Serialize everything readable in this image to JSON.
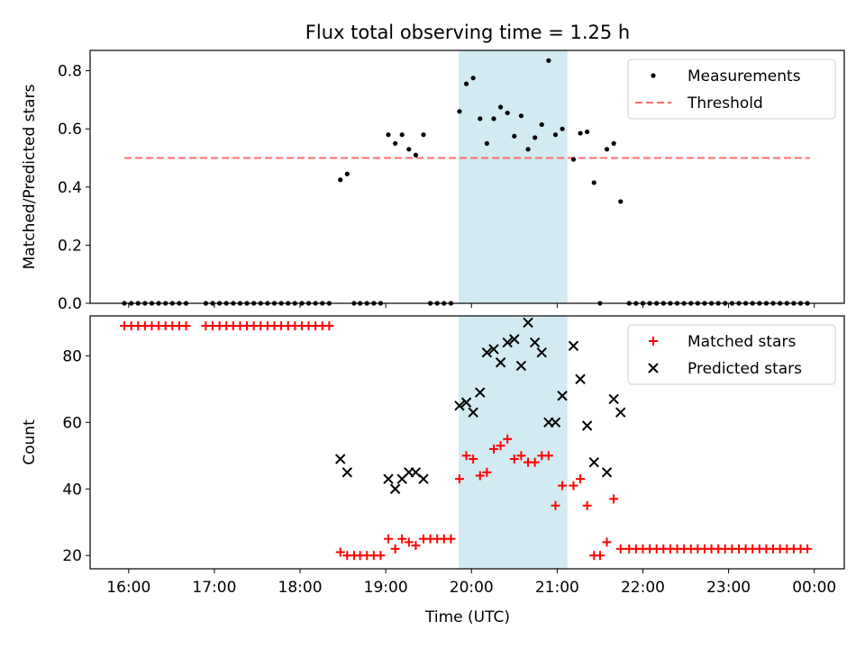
{
  "chart_data": [
    {
      "type": "scatter",
      "title": "Flux total observing time = 1.25 h",
      "xlabel": "",
      "ylabel": "Matched/Predicted stars",
      "ylim": [
        0,
        0.87
      ],
      "yticks": [
        0.0,
        0.2,
        0.4,
        0.6,
        0.8
      ],
      "ytick_labels": [
        "0.0",
        "0.2",
        "0.4",
        "0.6",
        "0.8"
      ],
      "xlim": [
        15.55,
        24.35
      ],
      "xticks": [
        16,
        17,
        18,
        19,
        20,
        21,
        22,
        23,
        24
      ],
      "xtick_labels": [],
      "highlight_span": {
        "from": 19.85,
        "to": 21.12,
        "color": "#add8e6"
      },
      "legend": {
        "position": "upper right",
        "entries": [
          "Measurements",
          "Threshold"
        ]
      },
      "threshold": {
        "name": "Threshold",
        "y": 0.5,
        "x_range": [
          15.95,
          23.95
        ],
        "color": "#ff6b6b"
      },
      "series": [
        {
          "name": "Measurements",
          "marker": "dot",
          "color": "#000000",
          "points": [
            [
              15.95,
              0
            ],
            [
              16.03,
              0
            ],
            [
              16.11,
              0
            ],
            [
              16.19,
              0
            ],
            [
              16.27,
              0
            ],
            [
              16.35,
              0
            ],
            [
              16.43,
              0
            ],
            [
              16.51,
              0
            ],
            [
              16.59,
              0
            ],
            [
              16.67,
              0
            ],
            [
              16.9,
              0
            ],
            [
              16.98,
              0
            ],
            [
              17.06,
              0
            ],
            [
              17.14,
              0
            ],
            [
              17.22,
              0
            ],
            [
              17.3,
              0
            ],
            [
              17.38,
              0
            ],
            [
              17.46,
              0
            ],
            [
              17.54,
              0
            ],
            [
              17.62,
              0
            ],
            [
              17.7,
              0
            ],
            [
              17.78,
              0
            ],
            [
              17.86,
              0
            ],
            [
              17.94,
              0
            ],
            [
              18.02,
              0
            ],
            [
              18.1,
              0
            ],
            [
              18.18,
              0
            ],
            [
              18.26,
              0
            ],
            [
              18.34,
              0
            ],
            [
              18.47,
              0.425
            ],
            [
              18.55,
              0.445
            ],
            [
              18.63,
              0
            ],
            [
              18.7,
              0
            ],
            [
              18.78,
              0
            ],
            [
              18.86,
              0
            ],
            [
              18.94,
              0
            ],
            [
              19.03,
              0.58
            ],
            [
              19.11,
              0.55
            ],
            [
              19.19,
              0.58
            ],
            [
              19.27,
              0.53
            ],
            [
              19.35,
              0.51
            ],
            [
              19.44,
              0.58
            ],
            [
              19.52,
              0
            ],
            [
              19.6,
              0
            ],
            [
              19.68,
              0
            ],
            [
              19.76,
              0
            ],
            [
              19.86,
              0.66
            ],
            [
              19.94,
              0.755
            ],
            [
              20.02,
              0.775
            ],
            [
              20.1,
              0.635
            ],
            [
              20.18,
              0.55
            ],
            [
              20.26,
              0.635
            ],
            [
              20.34,
              0.675
            ],
            [
              20.42,
              0.655
            ],
            [
              20.5,
              0.575
            ],
            [
              20.58,
              0.645
            ],
            [
              20.66,
              0.53
            ],
            [
              20.74,
              0.57
            ],
            [
              20.82,
              0.615
            ],
            [
              20.9,
              0.835
            ],
            [
              20.98,
              0.58
            ],
            [
              21.06,
              0.6
            ],
            [
              21.19,
              0.495
            ],
            [
              21.27,
              0.585
            ],
            [
              21.35,
              0.59
            ],
            [
              21.43,
              0.415
            ],
            [
              21.5,
              0
            ],
            [
              21.58,
              0.53
            ],
            [
              21.66,
              0.55
            ],
            [
              21.74,
              0.35
            ],
            [
              21.84,
              0
            ],
            [
              21.92,
              0
            ],
            [
              22.0,
              0
            ],
            [
              22.08,
              0
            ],
            [
              22.16,
              0
            ],
            [
              22.24,
              0
            ],
            [
              22.32,
              0
            ],
            [
              22.4,
              0
            ],
            [
              22.48,
              0
            ],
            [
              22.56,
              0
            ],
            [
              22.64,
              0
            ],
            [
              22.72,
              0
            ],
            [
              22.8,
              0
            ],
            [
              22.88,
              0
            ],
            [
              22.96,
              0
            ],
            [
              23.04,
              0
            ],
            [
              23.12,
              0
            ],
            [
              23.2,
              0
            ],
            [
              23.28,
              0
            ],
            [
              23.36,
              0
            ],
            [
              23.44,
              0
            ],
            [
              23.52,
              0
            ],
            [
              23.6,
              0
            ],
            [
              23.68,
              0
            ],
            [
              23.76,
              0
            ],
            [
              23.84,
              0
            ],
            [
              23.92,
              0
            ]
          ]
        }
      ]
    },
    {
      "type": "scatter",
      "title": "",
      "xlabel": "Time (UTC)",
      "ylabel": "Count",
      "ylim": [
        16,
        92
      ],
      "yticks": [
        20,
        40,
        60,
        80
      ],
      "ytick_labels": [
        "20",
        "40",
        "60",
        "80"
      ],
      "xlim": [
        15.55,
        24.35
      ],
      "xticks": [
        16,
        17,
        18,
        19,
        20,
        21,
        22,
        23,
        24
      ],
      "xtick_labels": [
        "16:00",
        "17:00",
        "18:00",
        "19:00",
        "20:00",
        "21:00",
        "22:00",
        "23:00",
        "00:00"
      ],
      "highlight_span": {
        "from": 19.85,
        "to": 21.12,
        "color": "#add8e6"
      },
      "legend": {
        "position": "upper right",
        "entries": [
          "Matched stars",
          "Predicted stars"
        ]
      },
      "series": [
        {
          "name": "Matched stars",
          "marker": "plus",
          "color": "#ff0000",
          "points": [
            [
              15.95,
              89
            ],
            [
              16.03,
              89
            ],
            [
              16.11,
              89
            ],
            [
              16.19,
              89
            ],
            [
              16.27,
              89
            ],
            [
              16.35,
              89
            ],
            [
              16.43,
              89
            ],
            [
              16.51,
              89
            ],
            [
              16.59,
              89
            ],
            [
              16.67,
              89
            ],
            [
              16.9,
              89
            ],
            [
              16.98,
              89
            ],
            [
              17.06,
              89
            ],
            [
              17.14,
              89
            ],
            [
              17.22,
              89
            ],
            [
              17.3,
              89
            ],
            [
              17.38,
              89
            ],
            [
              17.46,
              89
            ],
            [
              17.54,
              89
            ],
            [
              17.62,
              89
            ],
            [
              17.7,
              89
            ],
            [
              17.78,
              89
            ],
            [
              17.86,
              89
            ],
            [
              17.94,
              89
            ],
            [
              18.02,
              89
            ],
            [
              18.1,
              89
            ],
            [
              18.18,
              89
            ],
            [
              18.26,
              89
            ],
            [
              18.34,
              89
            ],
            [
              18.47,
              21
            ],
            [
              18.55,
              20
            ],
            [
              18.63,
              20
            ],
            [
              18.7,
              20
            ],
            [
              18.78,
              20
            ],
            [
              18.86,
              20
            ],
            [
              18.94,
              20
            ],
            [
              19.03,
              25
            ],
            [
              19.11,
              22
            ],
            [
              19.19,
              25
            ],
            [
              19.27,
              24
            ],
            [
              19.35,
              23
            ],
            [
              19.44,
              25
            ],
            [
              19.52,
              25
            ],
            [
              19.6,
              25
            ],
            [
              19.68,
              25
            ],
            [
              19.76,
              25
            ],
            [
              19.86,
              43
            ],
            [
              19.94,
              50
            ],
            [
              20.02,
              49
            ],
            [
              20.1,
              44
            ],
            [
              20.18,
              45
            ],
            [
              20.26,
              52
            ],
            [
              20.34,
              53
            ],
            [
              20.42,
              55
            ],
            [
              20.5,
              49
            ],
            [
              20.58,
              50
            ],
            [
              20.66,
              48
            ],
            [
              20.74,
              48
            ],
            [
              20.82,
              50
            ],
            [
              20.9,
              50
            ],
            [
              20.98,
              35
            ],
            [
              21.06,
              41
            ],
            [
              21.19,
              41
            ],
            [
              21.27,
              43
            ],
            [
              21.35,
              35
            ],
            [
              21.43,
              20
            ],
            [
              21.5,
              20
            ],
            [
              21.58,
              24
            ],
            [
              21.66,
              37
            ],
            [
              21.74,
              22
            ],
            [
              21.84,
              22
            ],
            [
              21.92,
              22
            ],
            [
              22.0,
              22
            ],
            [
              22.08,
              22
            ],
            [
              22.16,
              22
            ],
            [
              22.24,
              22
            ],
            [
              22.32,
              22
            ],
            [
              22.4,
              22
            ],
            [
              22.48,
              22
            ],
            [
              22.56,
              22
            ],
            [
              22.64,
              22
            ],
            [
              22.72,
              22
            ],
            [
              22.8,
              22
            ],
            [
              22.88,
              22
            ],
            [
              22.96,
              22
            ],
            [
              23.04,
              22
            ],
            [
              23.12,
              22
            ],
            [
              23.2,
              22
            ],
            [
              23.28,
              22
            ],
            [
              23.36,
              22
            ],
            [
              23.44,
              22
            ],
            [
              23.52,
              22
            ],
            [
              23.6,
              22
            ],
            [
              23.68,
              22
            ],
            [
              23.76,
              22
            ],
            [
              23.84,
              22
            ],
            [
              23.92,
              22
            ]
          ]
        },
        {
          "name": "Predicted stars",
          "marker": "x",
          "color": "#000000",
          "points": [
            [
              18.47,
              49
            ],
            [
              18.55,
              45
            ],
            [
              19.03,
              43
            ],
            [
              19.11,
              40
            ],
            [
              19.19,
              43
            ],
            [
              19.27,
              45
            ],
            [
              19.35,
              45
            ],
            [
              19.44,
              43
            ],
            [
              19.86,
              65
            ],
            [
              19.94,
              66
            ],
            [
              20.02,
              63
            ],
            [
              20.1,
              69
            ],
            [
              20.18,
              81
            ],
            [
              20.26,
              82
            ],
            [
              20.34,
              78
            ],
            [
              20.42,
              84
            ],
            [
              20.5,
              85
            ],
            [
              20.58,
              77
            ],
            [
              20.66,
              90
            ],
            [
              20.74,
              84
            ],
            [
              20.82,
              81
            ],
            [
              20.9,
              60
            ],
            [
              20.98,
              60
            ],
            [
              21.06,
              68
            ],
            [
              21.19,
              83
            ],
            [
              21.27,
              73
            ],
            [
              21.35,
              59
            ],
            [
              21.43,
              48
            ],
            [
              21.58,
              45
            ],
            [
              21.66,
              67
            ],
            [
              21.74,
              63
            ]
          ]
        }
      ]
    }
  ]
}
